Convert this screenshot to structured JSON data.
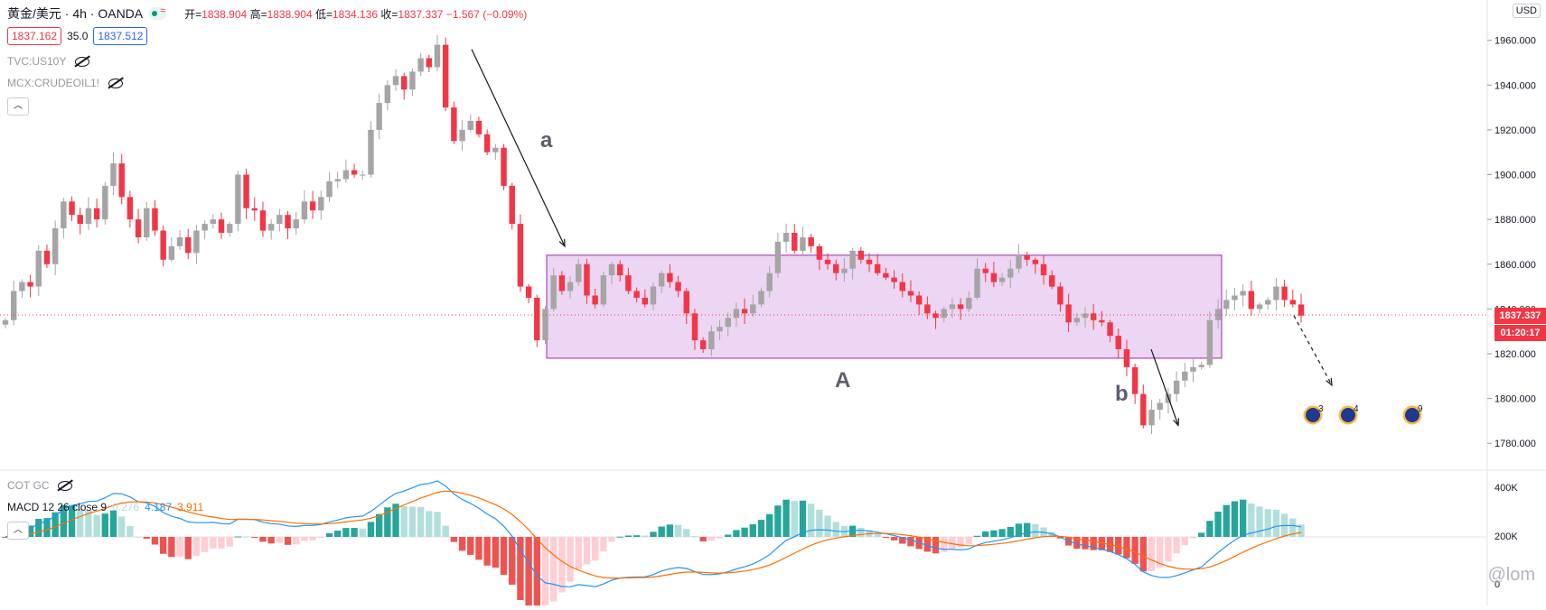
{
  "header": {
    "symbol": "黄金/美元 · 4h · OANDA",
    "open_label": "开=",
    "open": "1838.904",
    "high_label": "高=",
    "high": "1838.904",
    "low_label": "低=",
    "low": "1834.136",
    "close_label": "收=",
    "close": "1837.337",
    "change": "−1.567 (−0.09%)",
    "bid": "1837.162",
    "spread": "35.0",
    "ask": "1837.512"
  },
  "overlays": {
    "us10y": "TVC:US10Y",
    "crude": "MCX:CRUDEOIL1!",
    "cot": "COT GC"
  },
  "macd": {
    "label": "MACD 12 26 close 9",
    "v1": "0.276",
    "v2": "4.187",
    "v3": "3.911"
  },
  "currency": "USD",
  "current_price_label": "1837.337",
  "countdown": "01:20:17",
  "annotations": {
    "a": "a",
    "A": "A",
    "b": "b"
  },
  "events": [
    "3",
    "4",
    "9"
  ],
  "watermark": "@lom",
  "colors": {
    "up": "#a5a5a5",
    "down": "#f23645",
    "box_fill": "#e6c8ef",
    "box_border": "#9c27b0",
    "macd_line": "#2196f3",
    "signal_line": "#ff6d00",
    "hist_up": "#26a69a",
    "hist_up_light": "#b2dfdb",
    "hist_down": "#ef5350",
    "hist_down_light": "#ffcdd2"
  },
  "chart_data": {
    "type": "candlestick",
    "y_axis": {
      "ticks": [
        1780,
        1800,
        1820,
        1840,
        1860,
        1880,
        1900,
        1920,
        1940,
        1960
      ],
      "min": 1768,
      "max": 1978,
      "tick_format": "0.000"
    },
    "macd_axis": {
      "ticks": [
        "400K",
        "200K",
        "0"
      ]
    },
    "consolidation_box": {
      "y_top": 1864,
      "y_bottom": 1818
    },
    "last_price": 1837.337,
    "closes": [
      1835,
      1848,
      1852,
      1850,
      1866,
      1860,
      1876,
      1888,
      1882,
      1878,
      1885,
      1880,
      1895,
      1905,
      1890,
      1880,
      1872,
      1885,
      1875,
      1862,
      1868,
      1872,
      1865,
      1875,
      1878,
      1880,
      1874,
      1878,
      1900,
      1885,
      1884,
      1875,
      1878,
      1882,
      1876,
      1880,
      1888,
      1884,
      1890,
      1897,
      1898,
      1902,
      1900,
      1900,
      1920,
      1932,
      1940,
      1944,
      1938,
      1946,
      1952,
      1948,
      1958,
      1930,
      1915,
      1920,
      1924,
      1918,
      1910,
      1912,
      1895,
      1878,
      1850,
      1845,
      1826,
      1840,
      1855,
      1848,
      1852,
      1860,
      1846,
      1842,
      1855,
      1860,
      1855,
      1848,
      1845,
      1842,
      1850,
      1856,
      1852,
      1848,
      1838,
      1826,
      1822,
      1830,
      1832,
      1836,
      1840,
      1838,
      1842,
      1848,
      1856,
      1870,
      1874,
      1866,
      1872,
      1868,
      1862,
      1860,
      1856,
      1858,
      1866,
      1862,
      1860,
      1856,
      1854,
      1852,
      1848,
      1846,
      1842,
      1838,
      1836,
      1840,
      1842,
      1840,
      1845,
      1858,
      1856,
      1852,
      1854,
      1858,
      1864,
      1862,
      1860,
      1855,
      1850,
      1842,
      1834,
      1836,
      1838,
      1835,
      1834,
      1828,
      1822,
      1814,
      1802,
      1788,
      1795,
      1798,
      1802,
      1808,
      1812,
      1814,
      1815,
      1835,
      1840,
      1844,
      1846,
      1848,
      1840,
      1842,
      1844,
      1850,
      1844,
      1842,
      1837
    ]
  }
}
